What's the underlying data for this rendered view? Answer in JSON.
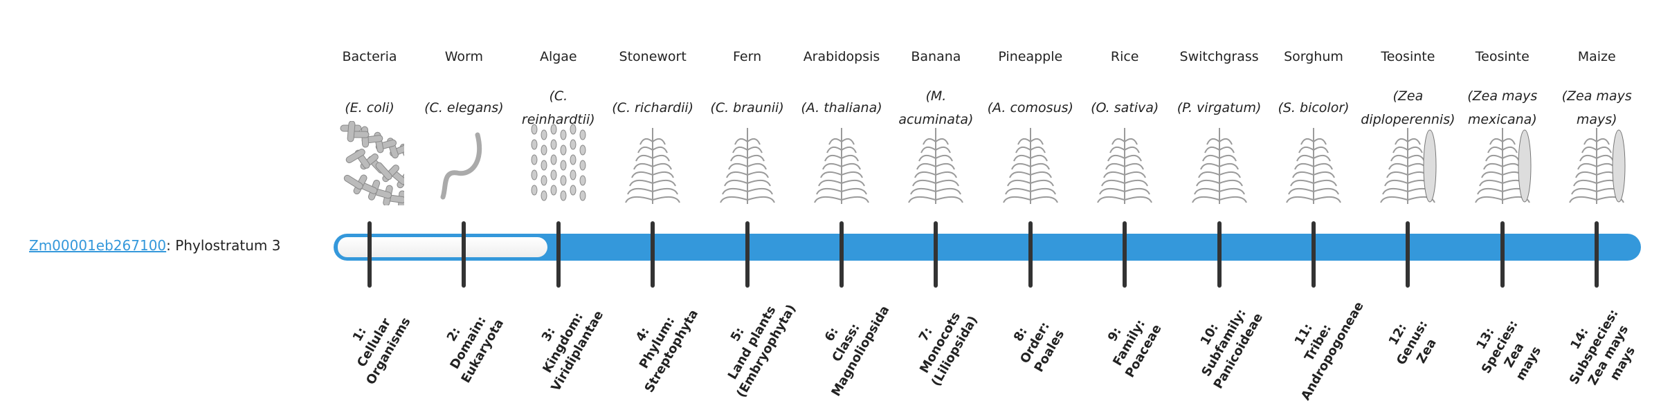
{
  "gene": {
    "id": "Zm00001eb267100",
    "suffix": ": Phylostratum 3",
    "phylostratum": 3
  },
  "colors": {
    "bar": "#3498db",
    "ticks": "#333333",
    "link": "#3498db"
  },
  "strata": [
    {
      "common": "Bacteria",
      "species": "(E. coli)",
      "image": "bacteria-illustration",
      "label": "1:\nCellular\nOrganisms"
    },
    {
      "common": "Worm",
      "species": "(C. elegans)",
      "image": "worm-illustration",
      "label": "2:\nDomain:\nEukaryota"
    },
    {
      "common": "Algae",
      "species": "(C. reinhardtii)",
      "image": "algae-illustration",
      "label": "3:\nKingdom:\nViridiplantae"
    },
    {
      "common": "Stonewort",
      "species": "(C. richardii)",
      "image": "stonewort-illustration",
      "label": "4:\nPhylum:\nStreptophyta"
    },
    {
      "common": "Fern",
      "species": "(C. braunii)",
      "image": "fern-illustration",
      "label": "5:\nLand plants\n(Embryophyta)"
    },
    {
      "common": "Arabidopsis",
      "species": "(A. thaliana)",
      "image": "arabidopsis-illustration",
      "label": "6:\nClass:\nMagnoliopsida"
    },
    {
      "common": "Banana",
      "species": "(M. acuminata)",
      "image": "banana-illustration",
      "label": "7:\nMonocots\n(Liliopsida)"
    },
    {
      "common": "Pineapple",
      "species": "(A. comosus)",
      "image": "pineapple-illustration",
      "label": "8:\nOrder:\nPoales"
    },
    {
      "common": "Rice",
      "species": "(O. sativa)",
      "image": "rice-illustration",
      "label": "9:\nFamily:\nPoaceae"
    },
    {
      "common": "Switchgrass",
      "species": "(P. virgatum)",
      "image": "switchgrass-illustration",
      "label": "10:\nSubfamily:\nPanicoideae"
    },
    {
      "common": "Sorghum",
      "species": "(S. bicolor)",
      "image": "sorghum-illustration",
      "label": "11:\nTribe:\nAndropogoneae"
    },
    {
      "common": "Teosinte",
      "species": "(Zea diploperennis)",
      "image": "teosinte-illustration",
      "label": "12:\nGenus:\nZea"
    },
    {
      "common": "Teosinte",
      "species": "(Zea mays mexicana)",
      "image": "teosinte-mexicana-illustration",
      "label": "13:\nSpecies:\nZea\nmays"
    },
    {
      "common": "Maize",
      "species": "(Zea mays mays)",
      "image": "maize-illustration",
      "label": "14:\nSubspecies:\nZea mays\nmays"
    }
  ]
}
